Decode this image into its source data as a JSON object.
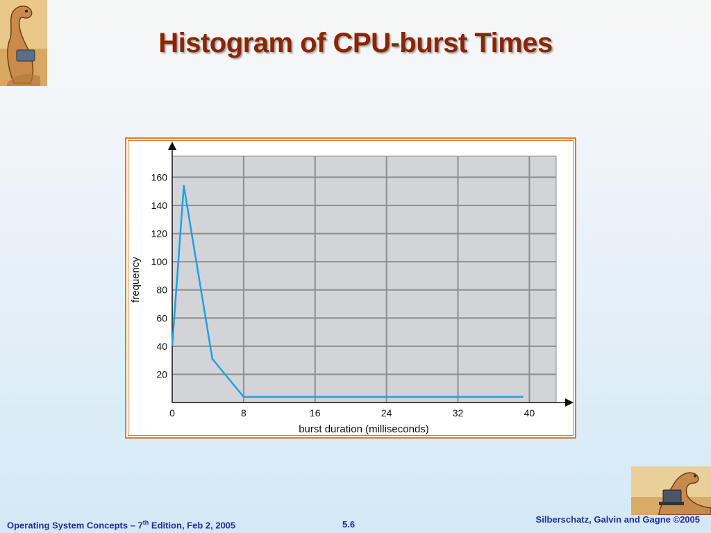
{
  "slide": {
    "title": "Histogram of CPU-burst Times"
  },
  "footer": {
    "left_prefix": "Operating System Concepts – 7",
    "left_sup": "th",
    "left_suffix": " Edition, Feb 2, 2005",
    "page": "5.6",
    "right": "Silberschatz, Galvin and Gagne ©2005"
  },
  "icons": {
    "top_left": "dinosaur-reading-logo",
    "bottom_right": "dinosaur-laptop-logo"
  },
  "colors": {
    "title": "#8b2500",
    "footer_text": "#1f2f9c",
    "frame": "#e27a22",
    "plot_bg": "#d3d4d7",
    "grid": "#8e8e92",
    "series_line": "#1fa0e0"
  },
  "chart_data": {
    "type": "line",
    "title": "",
    "xlabel": "burst duration (milliseconds)",
    "ylabel": "frequency",
    "xlim": [
      0,
      43
    ],
    "ylim": [
      0,
      175
    ],
    "x_ticks": [
      0,
      8,
      16,
      24,
      32,
      40
    ],
    "y_ticks": [
      20,
      40,
      60,
      80,
      100,
      120,
      140,
      160
    ],
    "grid": true,
    "legend": "none",
    "series": [
      {
        "x": [
          0,
          1.3,
          4.5,
          8,
          12,
          16,
          20,
          24,
          28,
          32,
          36,
          39.3
        ],
        "y": [
          40,
          154,
          31,
          4,
          4,
          4,
          4,
          4,
          4,
          4,
          4,
          4
        ]
      }
    ]
  }
}
